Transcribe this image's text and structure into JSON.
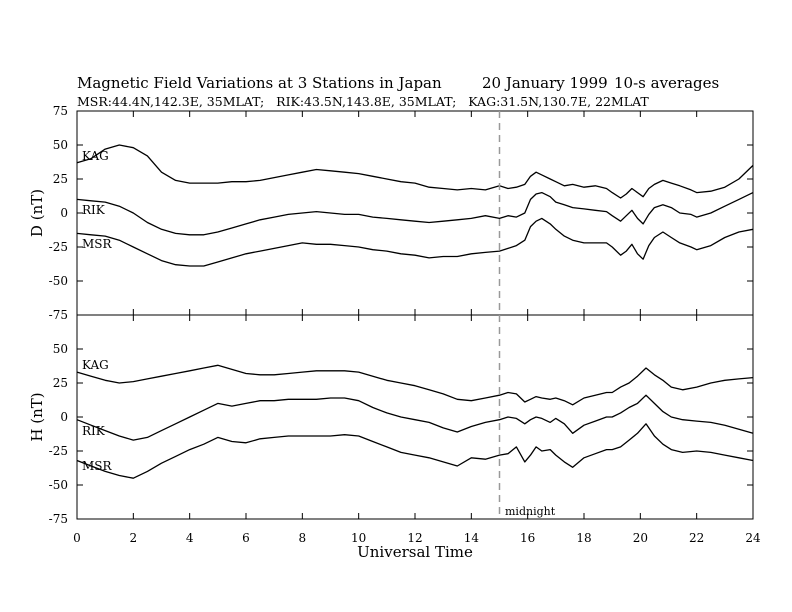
{
  "chart_data": {
    "type": "line",
    "title": "Magnetic Field Variations at 3 Stations in Japan",
    "date": "20 January 1999",
    "averaging": "10-s averages",
    "subtitle": "MSR:44.4N,142.3E, 35MLAT;   RIK:43.5N,143.8E, 35MLAT;   KAG:31.5N,130.7E, 22MLAT",
    "xlabel": "Universal Time",
    "xlim": [
      0,
      24
    ],
    "xticks": [
      "0",
      "2",
      "4",
      "6",
      "8",
      "10",
      "12",
      "14",
      "16",
      "18",
      "20",
      "22",
      "24"
    ],
    "marker": {
      "x": 15,
      "label": "midnight"
    },
    "panels": [
      {
        "ylabel": "D (nT)",
        "ylim": [
          -75,
          75
        ],
        "yticks": [
          "75",
          "50",
          "25",
          "0",
          "-25",
          "-50",
          "-75"
        ],
        "series": [
          {
            "name": "KAG",
            "x": [
              0,
              0.5,
              1,
              1.5,
              2,
              2.5,
              3,
              3.5,
              4,
              4.5,
              5,
              5.5,
              6,
              6.5,
              7,
              7.5,
              8,
              8.5,
              9,
              9.5,
              10,
              10.5,
              11,
              11.5,
              12,
              12.5,
              13,
              13.5,
              14,
              14.5,
              15,
              15.3,
              15.6,
              15.9,
              16.1,
              16.3,
              16.5,
              16.8,
              17,
              17.3,
              17.6,
              18,
              18.4,
              18.8,
              19,
              19.3,
              19.5,
              19.7,
              19.9,
              20.1,
              20.3,
              20.5,
              20.8,
              21.1,
              21.4,
              21.8,
              22,
              22.5,
              23,
              23.5,
              24
            ],
            "y": [
              37,
              40,
              47,
              50,
              48,
              42,
              30,
              24,
              22,
              22,
              22,
              23,
              23,
              24,
              26,
              28,
              30,
              32,
              31,
              30,
              29,
              27,
              25,
              23,
              22,
              19,
              18,
              17,
              18,
              17,
              20,
              18,
              19,
              21,
              27,
              30,
              28,
              25,
              23,
              20,
              21,
              19,
              20,
              18,
              15,
              11,
              14,
              18,
              15,
              12,
              18,
              21,
              24,
              22,
              20,
              17,
              15,
              16,
              19,
              25,
              35
            ]
          },
          {
            "name": "RIK",
            "x": [
              0,
              0.5,
              1,
              1.5,
              2,
              2.5,
              3,
              3.5,
              4,
              4.5,
              5,
              5.5,
              6,
              6.5,
              7,
              7.5,
              8,
              8.5,
              9,
              9.5,
              10,
              10.5,
              11,
              11.5,
              12,
              12.5,
              13,
              13.5,
              14,
              14.5,
              15,
              15.3,
              15.6,
              15.9,
              16.1,
              16.3,
              16.5,
              16.8,
              17,
              17.3,
              17.6,
              18,
              18.4,
              18.8,
              19,
              19.3,
              19.5,
              19.7,
              19.9,
              20.1,
              20.3,
              20.5,
              20.8,
              21.1,
              21.4,
              21.8,
              22,
              22.5,
              23,
              23.5,
              24
            ],
            "y": [
              10,
              9,
              8,
              5,
              0,
              -7,
              -12,
              -15,
              -16,
              -16,
              -14,
              -11,
              -8,
              -5,
              -3,
              -1,
              0,
              1,
              0,
              -1,
              -1,
              -3,
              -4,
              -5,
              -6,
              -7,
              -6,
              -5,
              -4,
              -2,
              -4,
              -2,
              -3,
              0,
              10,
              14,
              15,
              12,
              8,
              6,
              4,
              3,
              2,
              1,
              -2,
              -6,
              -2,
              2,
              -4,
              -8,
              -1,
              4,
              6,
              4,
              0,
              -1,
              -3,
              0,
              5,
              10,
              15
            ]
          },
          {
            "name": "MSR",
            "x": [
              0,
              0.5,
              1,
              1.5,
              2,
              2.5,
              3,
              3.5,
              4,
              4.5,
              5,
              5.5,
              6,
              6.5,
              7,
              7.5,
              8,
              8.5,
              9,
              9.5,
              10,
              10.5,
              11,
              11.5,
              12,
              12.5,
              13,
              13.5,
              14,
              14.5,
              15,
              15.3,
              15.6,
              15.9,
              16.1,
              16.3,
              16.5,
              16.8,
              17,
              17.3,
              17.6,
              18,
              18.4,
              18.8,
              19,
              19.3,
              19.5,
              19.7,
              19.9,
              20.1,
              20.3,
              20.5,
              20.8,
              21.1,
              21.4,
              21.8,
              22,
              22.5,
              23,
              23.5,
              24
            ],
            "y": [
              -15,
              -16,
              -17,
              -20,
              -25,
              -30,
              -35,
              -38,
              -39,
              -39,
              -36,
              -33,
              -30,
              -28,
              -26,
              -24,
              -22,
              -23,
              -23,
              -24,
              -25,
              -27,
              -28,
              -30,
              -31,
              -33,
              -32,
              -32,
              -30,
              -29,
              -28,
              -26,
              -24,
              -20,
              -10,
              -6,
              -4,
              -8,
              -12,
              -17,
              -20,
              -22,
              -22,
              -22,
              -25,
              -31,
              -28,
              -23,
              -30,
              -34,
              -24,
              -18,
              -14,
              -18,
              -22,
              -25,
              -27,
              -24,
              -18,
              -14,
              -12
            ]
          }
        ]
      },
      {
        "ylabel": "H (nT)",
        "ylim": [
          -75,
          75
        ],
        "yticks": [
          "50",
          "25",
          "0",
          "-25",
          "-50",
          "-75"
        ],
        "series": [
          {
            "name": "KAG",
            "x": [
              0,
              0.5,
              1,
              1.5,
              2,
              2.5,
              3,
              3.5,
              4,
              4.5,
              5,
              5.5,
              6,
              6.5,
              7,
              7.5,
              8,
              8.5,
              9,
              9.5,
              10,
              10.5,
              11,
              11.5,
              12,
              12.5,
              13,
              13.5,
              14,
              14.5,
              15,
              15.3,
              15.6,
              15.9,
              16.1,
              16.3,
              16.5,
              16.8,
              17,
              17.3,
              17.6,
              18,
              18.4,
              18.8,
              19,
              19.3,
              19.6,
              19.9,
              20.2,
              20.5,
              20.8,
              21.1,
              21.5,
              22,
              22.5,
              23,
              23.5,
              24
            ],
            "y": [
              33,
              30,
              27,
              25,
              26,
              28,
              30,
              32,
              34,
              36,
              38,
              35,
              32,
              31,
              31,
              32,
              33,
              34,
              34,
              34,
              33,
              30,
              27,
              25,
              23,
              20,
              17,
              13,
              12,
              14,
              16,
              18,
              17,
              11,
              13,
              15,
              14,
              13,
              14,
              12,
              9,
              14,
              16,
              18,
              18,
              22,
              25,
              30,
              36,
              31,
              27,
              22,
              20,
              22,
              25,
              27,
              28,
              29
            ]
          },
          {
            "name": "RIK",
            "x": [
              0,
              0.5,
              1,
              1.5,
              2,
              2.5,
              3,
              3.5,
              4,
              4.5,
              5,
              5.5,
              6,
              6.5,
              7,
              7.5,
              8,
              8.5,
              9,
              9.5,
              10,
              10.5,
              11,
              11.5,
              12,
              12.5,
              13,
              13.5,
              14,
              14.5,
              15,
              15.3,
              15.6,
              15.9,
              16.1,
              16.3,
              16.5,
              16.8,
              17,
              17.3,
              17.6,
              18,
              18.4,
              18.8,
              19,
              19.3,
              19.6,
              19.9,
              20.2,
              20.5,
              20.8,
              21.1,
              21.5,
              22,
              22.5,
              23,
              23.5,
              24
            ],
            "y": [
              -2,
              -6,
              -10,
              -14,
              -17,
              -15,
              -10,
              -5,
              0,
              5,
              10,
              8,
              10,
              12,
              12,
              13,
              13,
              13,
              14,
              14,
              12,
              7,
              3,
              0,
              -2,
              -4,
              -8,
              -11,
              -7,
              -4,
              -2,
              0,
              -1,
              -5,
              -2,
              0,
              -1,
              -4,
              -1,
              -5,
              -12,
              -6,
              -3,
              0,
              0,
              3,
              7,
              10,
              16,
              10,
              4,
              0,
              -2,
              -3,
              -4,
              -6,
              -9,
              -12
            ]
          },
          {
            "name": "MSR",
            "x": [
              0,
              0.5,
              1,
              1.5,
              2,
              2.5,
              3,
              3.5,
              4,
              4.5,
              5,
              5.5,
              6,
              6.5,
              7,
              7.5,
              8,
              8.5,
              9,
              9.5,
              10,
              10.5,
              11,
              11.5,
              12,
              12.5,
              13,
              13.5,
              14,
              14.5,
              15,
              15.3,
              15.6,
              15.9,
              16.1,
              16.3,
              16.5,
              16.8,
              17,
              17.3,
              17.6,
              18,
              18.4,
              18.8,
              19,
              19.3,
              19.6,
              19.9,
              20.2,
              20.5,
              20.8,
              21.1,
              21.5,
              22,
              22.5,
              23,
              23.5,
              24
            ],
            "y": [
              -32,
              -36,
              -40,
              -43,
              -45,
              -40,
              -34,
              -29,
              -24,
              -20,
              -15,
              -18,
              -19,
              -16,
              -15,
              -14,
              -14,
              -14,
              -14,
              -13,
              -14,
              -18,
              -22,
              -26,
              -28,
              -30,
              -33,
              -36,
              -30,
              -31,
              -28,
              -27,
              -22,
              -33,
              -28,
              -22,
              -25,
              -24,
              -28,
              -33,
              -37,
              -30,
              -27,
              -24,
              -24,
              -22,
              -17,
              -12,
              -5,
              -14,
              -20,
              -24,
              -26,
              -25,
              -26,
              -28,
              -30,
              -32
            ]
          }
        ]
      }
    ]
  }
}
